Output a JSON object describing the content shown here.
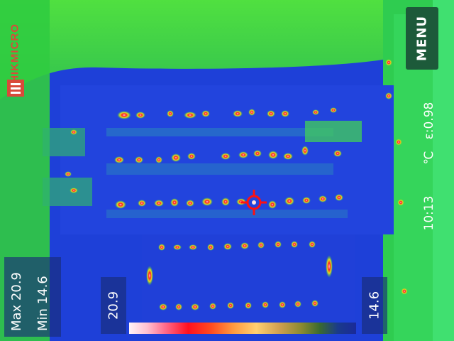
{
  "brand": {
    "name": "HIKMICRO"
  },
  "menu": {
    "label": "MENU"
  },
  "measurements": {
    "max_label": "Max 20.9",
    "min_label": "Min 14.6"
  },
  "scale": {
    "max_value": "20.9",
    "min_value": "14.6"
  },
  "status": {
    "time": "10:13",
    "unit": "℃",
    "emissivity": "ε:0.98"
  },
  "colors": {
    "cold": "#1a3fd6",
    "mid": "#30d040",
    "hot": "#ff1010",
    "brand": "#d94a3a"
  },
  "icons": {
    "crosshair": "crosshair-icon",
    "brand_logo": "hikmicro-logo-icon"
  }
}
